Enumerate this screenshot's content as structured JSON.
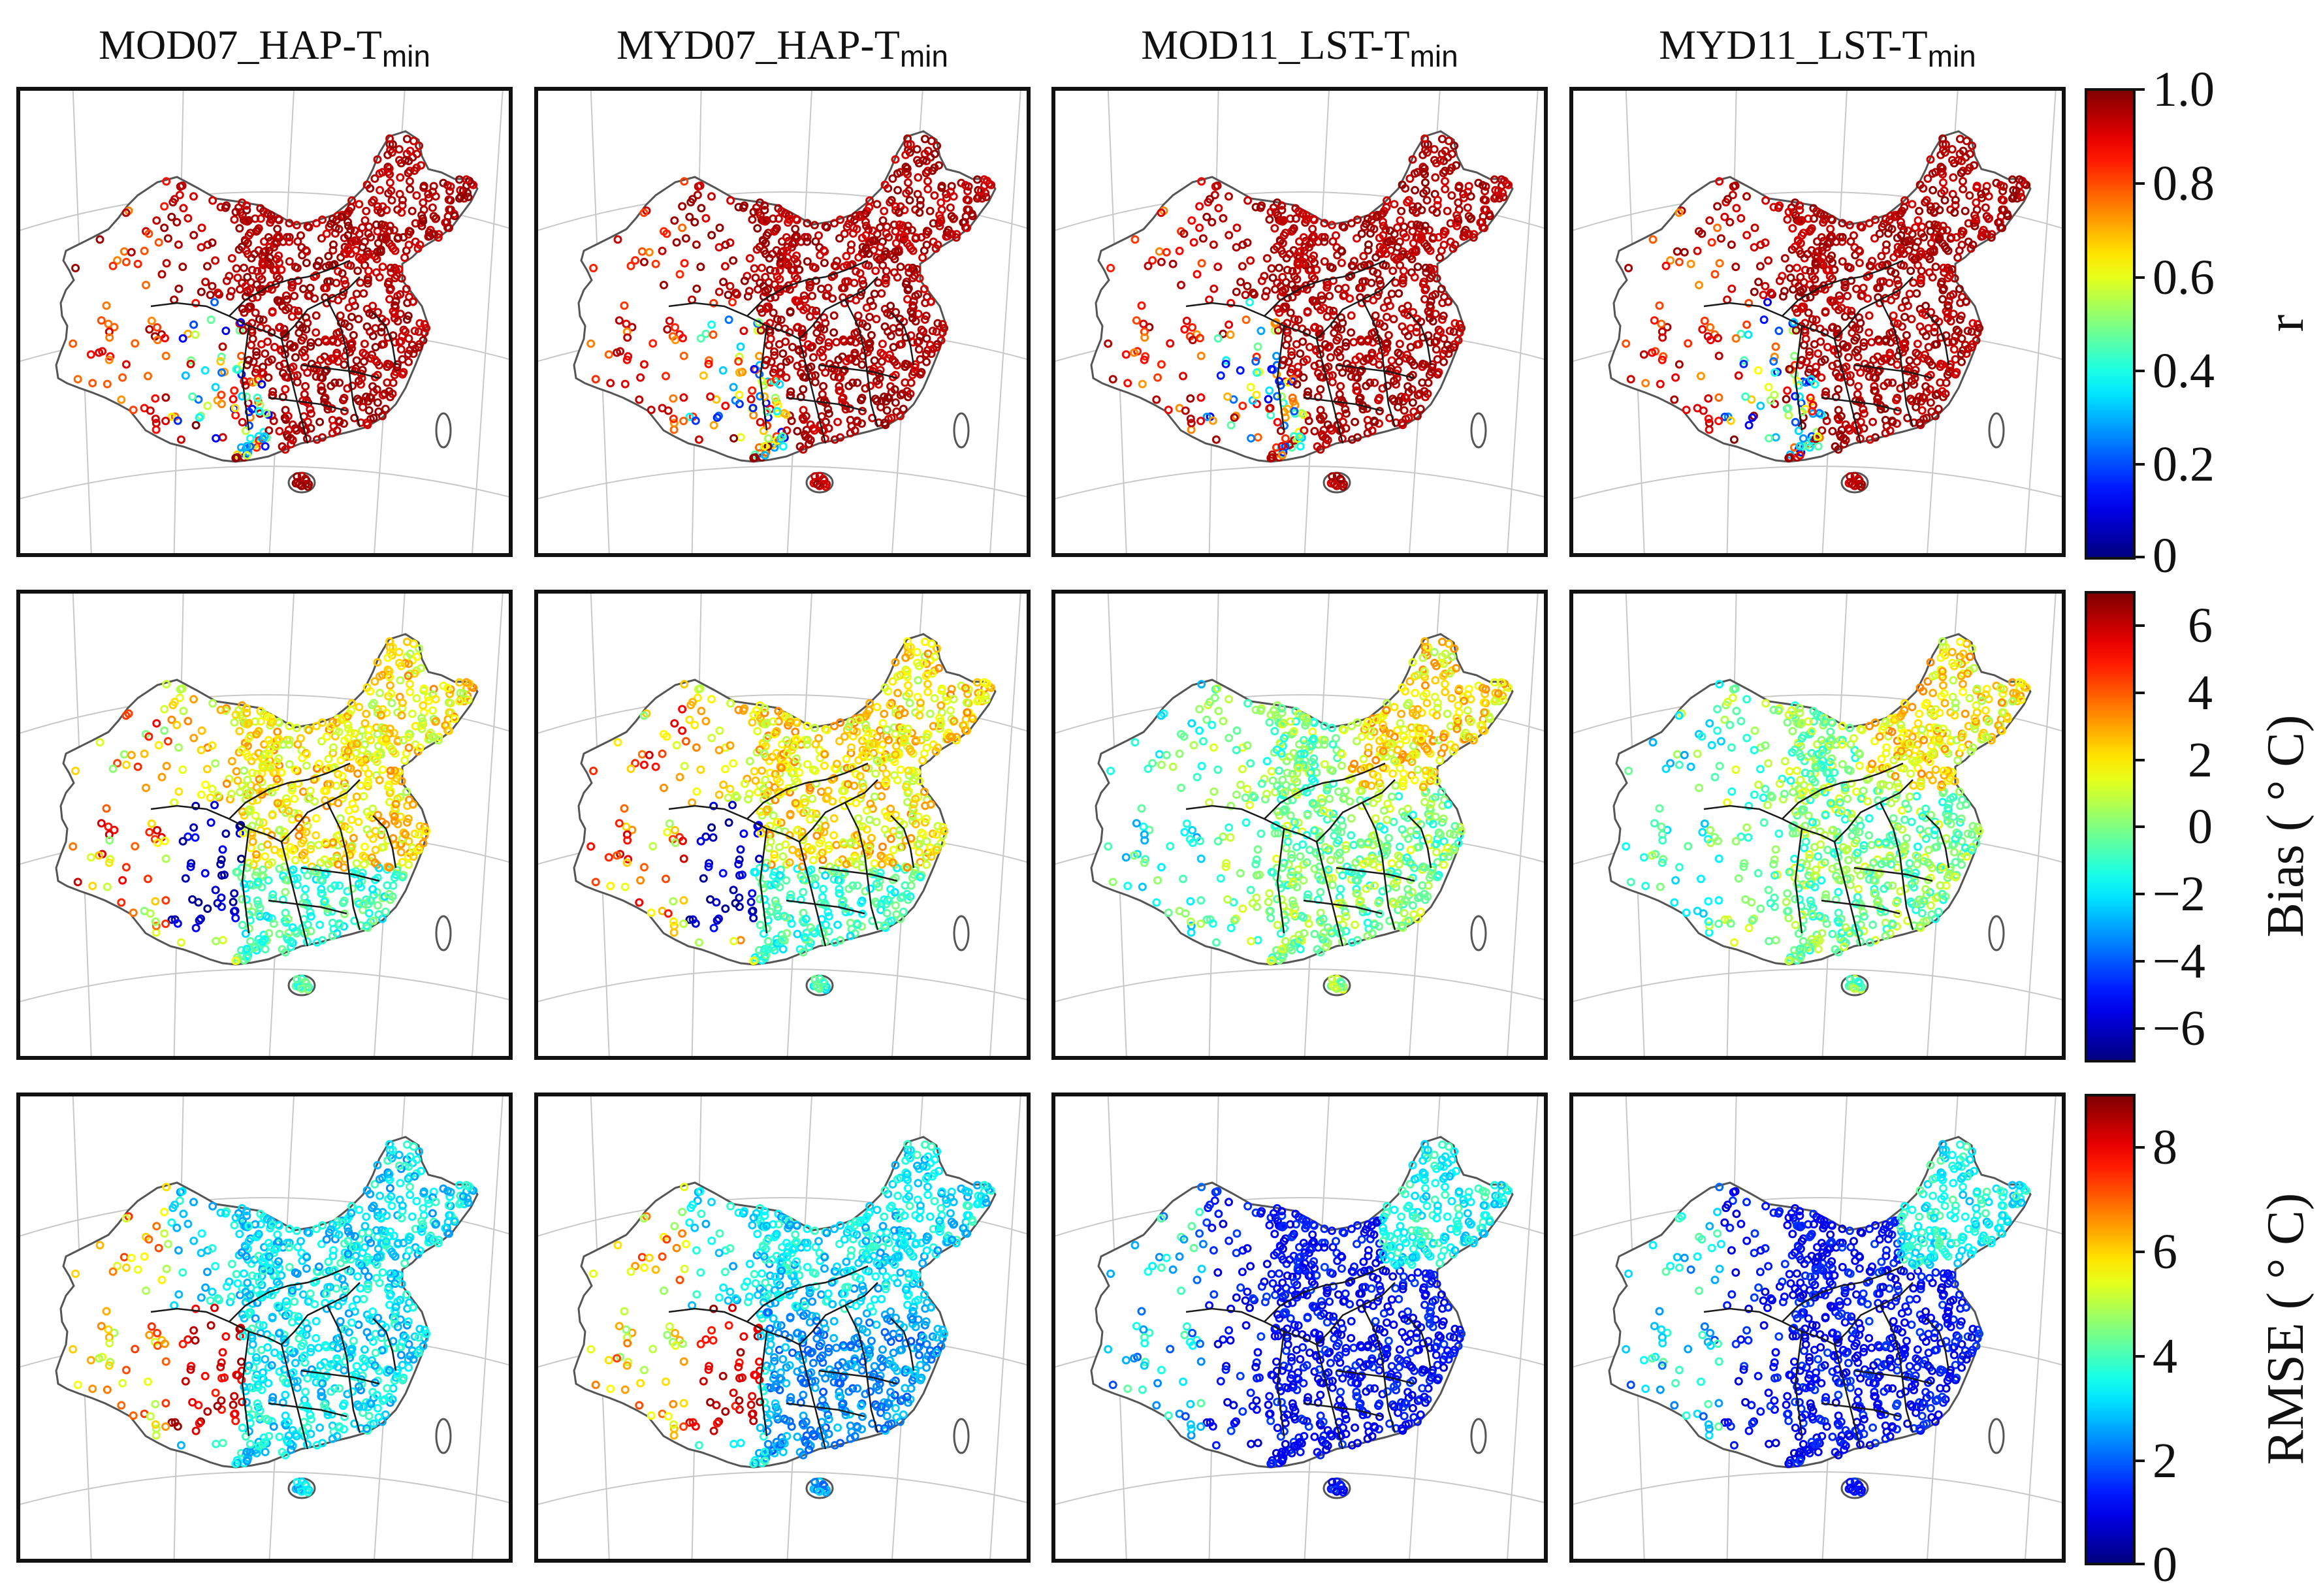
{
  "figure": {
    "columns": [
      {
        "product": "MOD07_HAP-T",
        "subscript": "min"
      },
      {
        "product": "MYD07_HAP-T",
        "subscript": "min"
      },
      {
        "product": "MOD11_LST-T",
        "subscript": "min"
      },
      {
        "product": "MYD11_LST-T",
        "subscript": "min"
      }
    ],
    "rows": [
      {
        "metric": "r",
        "colorbar_label": "r",
        "range": [
          0,
          1.0
        ],
        "tick_labels": [
          "1.0",
          "0.8",
          "0.6",
          "0.4",
          "0.2",
          "0"
        ],
        "tick_values": [
          1.0,
          0.8,
          0.6,
          0.4,
          0.2,
          0
        ]
      },
      {
        "metric": "Bias",
        "colorbar_label": "Bias ( ° C)",
        "range": [
          -7,
          7
        ],
        "tick_labels": [
          "6",
          "4",
          "2",
          "0",
          "−2",
          "−4",
          "−6"
        ],
        "tick_values": [
          6,
          4,
          2,
          0,
          -2,
          -4,
          -6
        ]
      },
      {
        "metric": "RMSE",
        "colorbar_label": "RMSE ( ° C)",
        "range": [
          0,
          9
        ],
        "tick_labels": [
          "8",
          "6",
          "4",
          "2",
          "0"
        ],
        "tick_values": [
          8,
          6,
          4,
          2,
          0
        ]
      }
    ],
    "colormap": "jet",
    "colors": {
      "map_border": "#555555",
      "province_border": "#1a1a1a",
      "graticule": "#c8c8c8"
    }
  }
}
